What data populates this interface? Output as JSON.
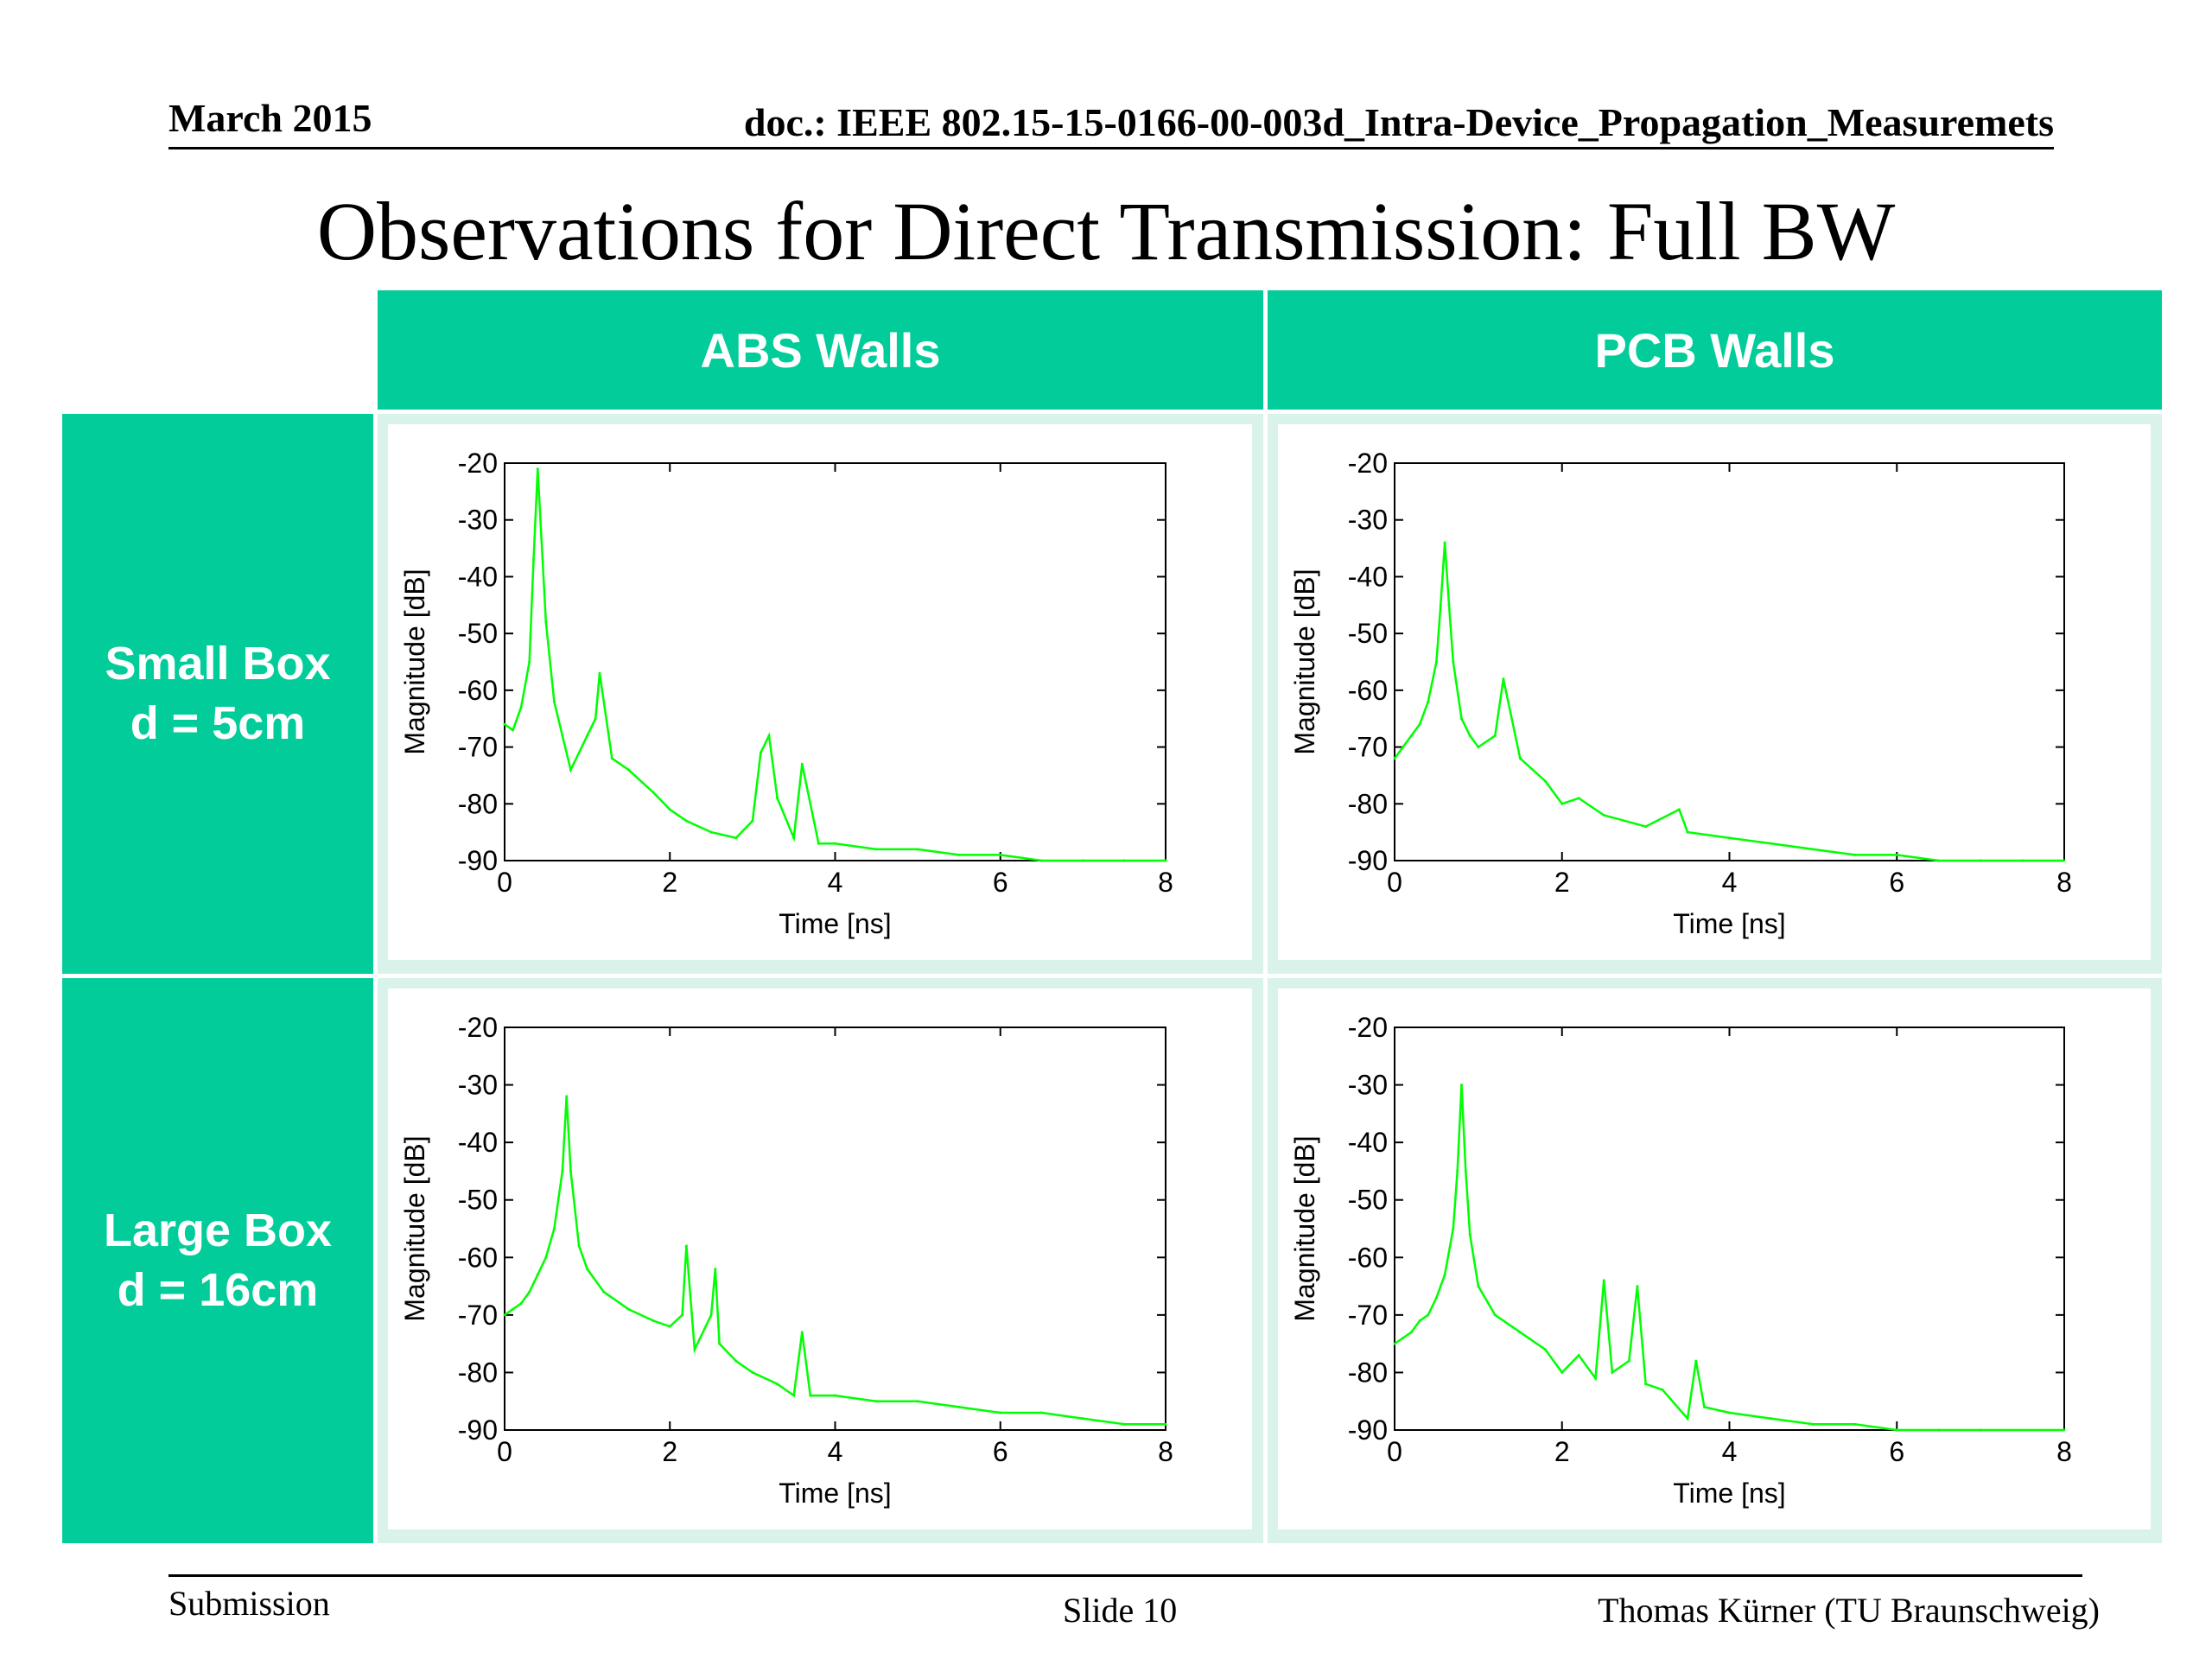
{
  "header": {
    "date": "March 2015",
    "doc": "doc.: IEEE 802.15-15-0166-00-003d_Intra-Device_Propagation_Measuremets"
  },
  "title": "Observations for Direct Transmission: Full BW",
  "table": {
    "col_headers": [
      "ABS Walls",
      "PCB Walls"
    ],
    "rows": [
      {
        "line1": "Small Box",
        "line2": "d = 5cm"
      },
      {
        "line1": "Large Box",
        "line2": "d = 16cm"
      }
    ],
    "colors": {
      "header_bg": "#02CC9A",
      "header_text": "#FFFFFF",
      "cell_bg": "#D9F3EA"
    }
  },
  "footer": {
    "left": "Submission",
    "center": "Slide 10",
    "right": "Thomas Kürner (TU Braunschweig)"
  },
  "chart_data": [
    {
      "type": "line",
      "panel": "Small Box d = 5cm / ABS Walls",
      "xlabel": "Time [ns]",
      "ylabel": "Magnitude [dB]",
      "xlim": [
        0,
        8
      ],
      "ylim": [
        -90,
        -20
      ],
      "xticks": [
        0,
        2,
        4,
        6,
        8
      ],
      "yticks": [
        -20,
        -30,
        -40,
        -50,
        -60,
        -70,
        -80,
        -90
      ],
      "color": "#00FF00",
      "x": [
        0,
        0.1,
        0.2,
        0.3,
        0.35,
        0.4,
        0.5,
        0.6,
        0.7,
        0.8,
        1.0,
        1.1,
        1.15,
        1.3,
        1.5,
        1.8,
        2.0,
        2.2,
        2.5,
        2.8,
        3.0,
        3.1,
        3.2,
        3.3,
        3.5,
        3.6,
        3.8,
        4.0,
        4.5,
        5.0,
        5.5,
        6.0,
        6.5,
        7.0,
        7.5,
        8.0
      ],
      "y": [
        -66,
        -67,
        -63,
        -55,
        -37,
        -21,
        -48,
        -62,
        -68,
        -74,
        -68,
        -65,
        -57,
        -72,
        -74,
        -78,
        -81,
        -83,
        -85,
        -86,
        -83,
        -71,
        -68,
        -79,
        -86,
        -73,
        -87,
        -87,
        -88,
        -88,
        -89,
        -89,
        -90,
        -90,
        -90,
        -90
      ]
    },
    {
      "type": "line",
      "panel": "Small Box d = 5cm / PCB Walls",
      "xlabel": "Time [ns]",
      "ylabel": "Magnitude [dB]",
      "xlim": [
        0,
        8
      ],
      "ylim": [
        -90,
        -20
      ],
      "xticks": [
        0,
        2,
        4,
        6,
        8
      ],
      "yticks": [
        -20,
        -30,
        -40,
        -50,
        -60,
        -70,
        -80,
        -90
      ],
      "color": "#00FF00",
      "x": [
        0,
        0.1,
        0.2,
        0.3,
        0.4,
        0.5,
        0.55,
        0.6,
        0.65,
        0.7,
        0.8,
        0.9,
        1.0,
        1.2,
        1.3,
        1.5,
        1.8,
        2.0,
        2.2,
        2.5,
        3.0,
        3.4,
        3.5,
        4.0,
        4.5,
        5.0,
        5.5,
        6.0,
        6.5,
        7.0,
        7.5,
        8.0
      ],
      "y": [
        -72,
        -70,
        -68,
        -66,
        -62,
        -55,
        -45,
        -34,
        -45,
        -55,
        -65,
        -68,
        -70,
        -68,
        -58,
        -72,
        -76,
        -80,
        -79,
        -82,
        -84,
        -81,
        -85,
        -86,
        -87,
        -88,
        -89,
        -89,
        -90,
        -90,
        -90,
        -90
      ]
    },
    {
      "type": "line",
      "panel": "Large Box d = 16cm / ABS Walls",
      "xlabel": "Time [ns]",
      "ylabel": "Magnitude [dB]",
      "xlim": [
        0,
        8
      ],
      "ylim": [
        -90,
        -20
      ],
      "xticks": [
        0,
        2,
        4,
        6,
        8
      ],
      "yticks": [
        -20,
        -30,
        -40,
        -50,
        -60,
        -70,
        -80,
        -90
      ],
      "color": "#00FF00",
      "x": [
        0,
        0.1,
        0.2,
        0.3,
        0.4,
        0.5,
        0.6,
        0.7,
        0.75,
        0.8,
        0.9,
        1.0,
        1.2,
        1.5,
        1.8,
        2.0,
        2.15,
        2.2,
        2.3,
        2.5,
        2.55,
        2.6,
        2.8,
        3.0,
        3.3,
        3.5,
        3.6,
        3.7,
        4.0,
        4.5,
        5.0,
        5.5,
        6.0,
        6.5,
        7.0,
        7.5,
        8.0
      ],
      "y": [
        -70,
        -69,
        -68,
        -66,
        -63,
        -60,
        -55,
        -45,
        -32,
        -45,
        -58,
        -62,
        -66,
        -69,
        -71,
        -72,
        -70,
        -58,
        -76,
        -70,
        -62,
        -75,
        -78,
        -80,
        -82,
        -84,
        -73,
        -84,
        -84,
        -85,
        -85,
        -86,
        -87,
        -87,
        -88,
        -89,
        -89
      ]
    },
    {
      "type": "line",
      "panel": "Large Box d = 16cm / PCB Walls",
      "xlabel": "Time [ns]",
      "ylabel": "Magnitude [dB]",
      "xlim": [
        0,
        8
      ],
      "ylim": [
        -90,
        -20
      ],
      "xticks": [
        0,
        2,
        4,
        6,
        8
      ],
      "yticks": [
        -20,
        -30,
        -40,
        -50,
        -60,
        -70,
        -80,
        -90
      ],
      "color": "#00FF00",
      "x": [
        0,
        0.1,
        0.2,
        0.3,
        0.4,
        0.5,
        0.6,
        0.7,
        0.75,
        0.8,
        0.85,
        0.9,
        1.0,
        1.2,
        1.5,
        1.8,
        2.0,
        2.2,
        2.4,
        2.5,
        2.6,
        2.8,
        2.9,
        3.0,
        3.2,
        3.5,
        3.6,
        3.7,
        4.0,
        4.5,
        5.0,
        5.5,
        6.0,
        6.5,
        7.0,
        8.0
      ],
      "y": [
        -75,
        -74,
        -73,
        -71,
        -70,
        -67,
        -63,
        -55,
        -45,
        -30,
        -45,
        -56,
        -65,
        -70,
        -73,
        -76,
        -80,
        -77,
        -81,
        -64,
        -80,
        -78,
        -65,
        -82,
        -83,
        -88,
        -78,
        -86,
        -87,
        -88,
        -89,
        -89,
        -90,
        -90,
        -90,
        -90
      ]
    }
  ]
}
